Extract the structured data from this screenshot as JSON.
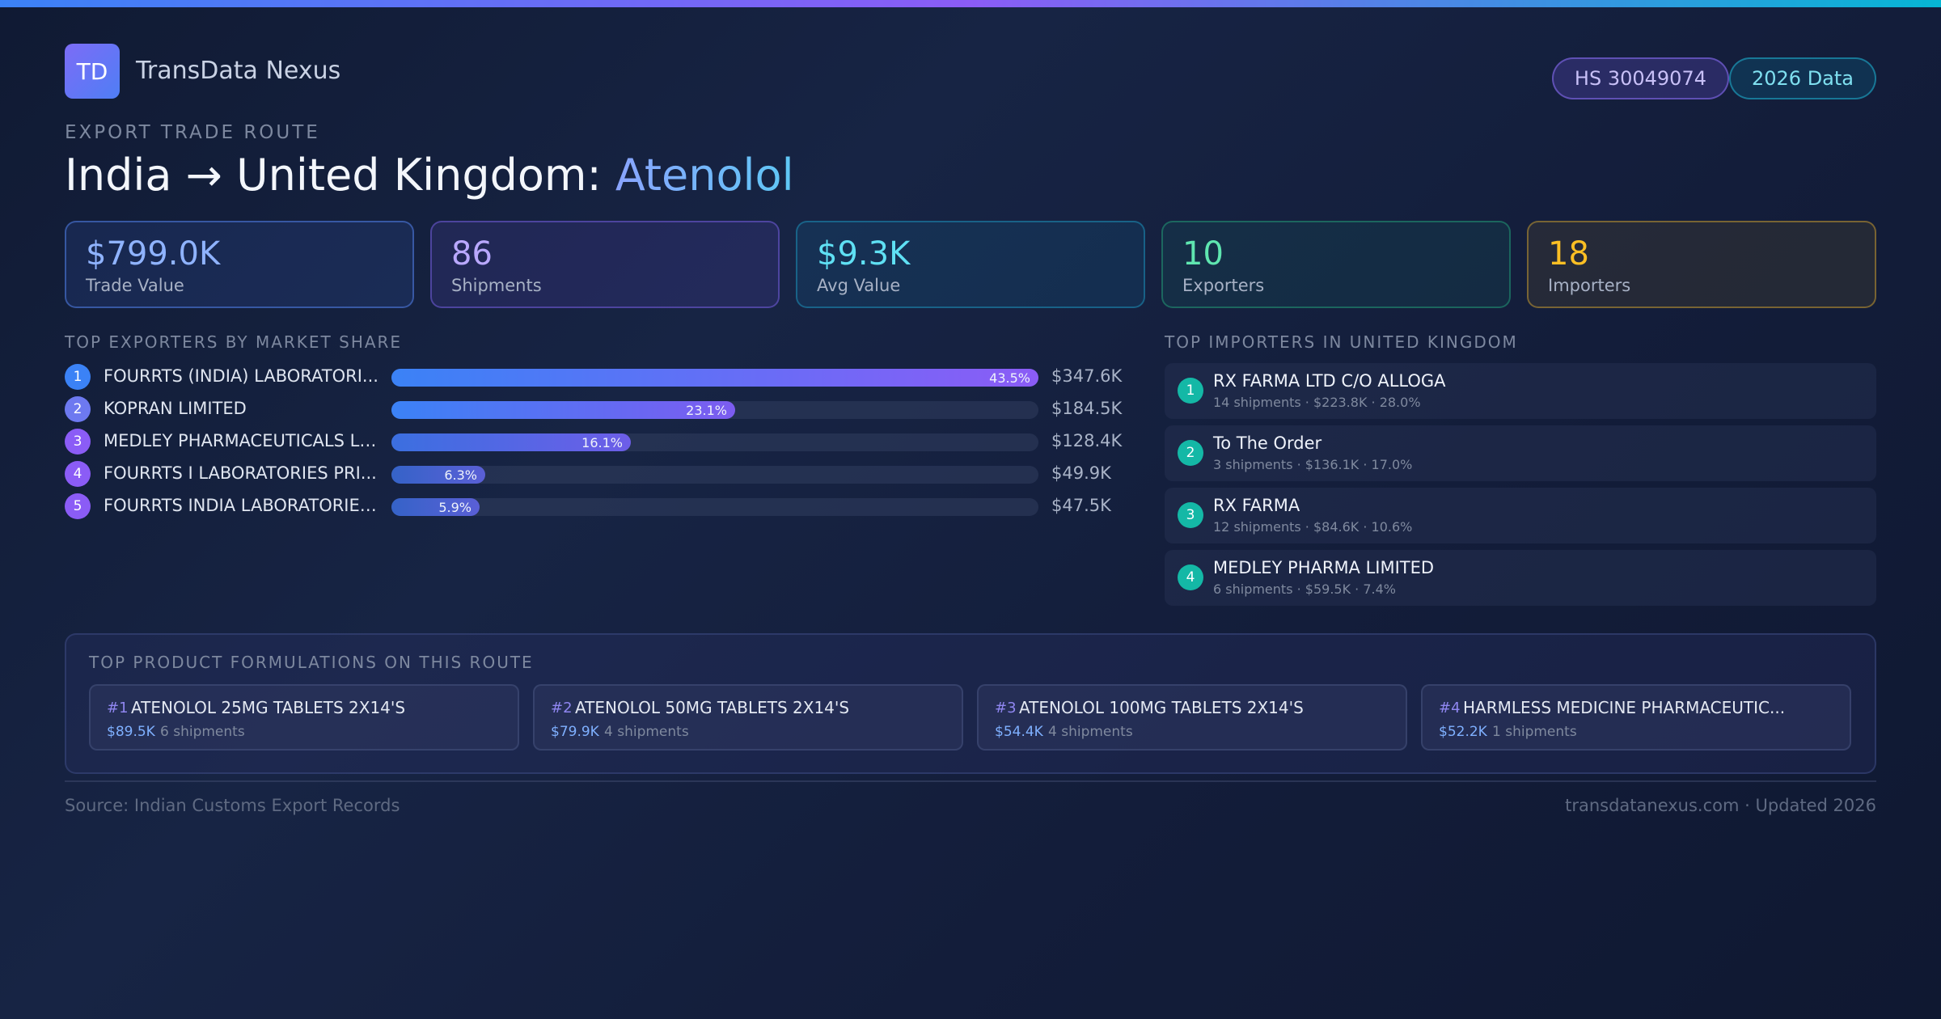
{
  "brand": {
    "logo_text": "TD",
    "name": "TransData Nexus"
  },
  "badges": {
    "hs_code": "HS 30049074",
    "data_year": "2026 Data"
  },
  "eyebrow": "EXPORT TRADE ROUTE",
  "title": {
    "prefix": "India → United Kingdom: ",
    "product": "Atenolol"
  },
  "stats": [
    {
      "value": "$799.0K",
      "label": "Trade Value"
    },
    {
      "value": "86",
      "label": "Shipments"
    },
    {
      "value": "$9.3K",
      "label": "Avg Value"
    },
    {
      "value": "10",
      "label": "Exporters"
    },
    {
      "value": "18",
      "label": "Importers"
    }
  ],
  "exporters": {
    "title": "TOP EXPORTERS BY MARKET SHARE",
    "items": [
      {
        "rank": "1",
        "name": "FOURRTS (INDIA) LABORATORI...",
        "share": 43.5,
        "share_label": "43.5%",
        "value": "$347.6K"
      },
      {
        "rank": "2",
        "name": "KOPRAN LIMITED",
        "share": 23.1,
        "share_label": "23.1%",
        "value": "$184.5K"
      },
      {
        "rank": "3",
        "name": "MEDLEY PHARMACEUTICALS LIM...",
        "share": 16.1,
        "share_label": "16.1%",
        "value": "$128.4K"
      },
      {
        "rank": "4",
        "name": "FOURRTS I LABORATORIES PRI...",
        "share": 6.3,
        "share_label": "6.3%",
        "value": "$49.9K"
      },
      {
        "rank": "5",
        "name": "FOURRTS INDIA LABORATORIES...",
        "share": 5.9,
        "share_label": "5.9%",
        "value": "$47.5K"
      }
    ]
  },
  "importers": {
    "title": "TOP IMPORTERS IN UNITED KINGDOM",
    "items": [
      {
        "rank": "1",
        "name": "RX FARMA LTD C/O ALLOGA",
        "detail": "14 shipments · $223.8K · 28.0%"
      },
      {
        "rank": "2",
        "name": "To The Order",
        "detail": "3 shipments · $136.1K · 17.0%"
      },
      {
        "rank": "3",
        "name": "RX FARMA",
        "detail": "12 shipments · $84.6K · 10.6%"
      },
      {
        "rank": "4",
        "name": "MEDLEY PHARMA LIMITED",
        "detail": "6 shipments · $59.5K · 7.4%"
      }
    ]
  },
  "products": {
    "title": "TOP PRODUCT FORMULATIONS ON THIS ROUTE",
    "items": [
      {
        "rank": "#1",
        "name": "ATENOLOL 25MG TABLETS 2X14'S",
        "value": "$89.5K",
        "shipments": "6 shipments"
      },
      {
        "rank": "#2",
        "name": "ATENOLOL 50MG TABLETS 2X14'S",
        "value": "$79.9K",
        "shipments": "4 shipments"
      },
      {
        "rank": "#3",
        "name": "ATENOLOL 100MG TABLETS 2X14'S",
        "value": "$54.4K",
        "shipments": "4 shipments"
      },
      {
        "rank": "#4",
        "name": "HARMLESS MEDICINE PHARMACEUTIC...",
        "value": "$52.2K",
        "shipments": "1 shipments"
      }
    ]
  },
  "footer": {
    "source": "Source: Indian Customs Export Records",
    "site": "transdatanexus.com · Updated 2026"
  },
  "colors": {
    "accent_blue": "#3b82f6",
    "accent_purple": "#8b5cf6",
    "accent_cyan": "#06b6d4",
    "importer_badge": "#14b8a6"
  }
}
